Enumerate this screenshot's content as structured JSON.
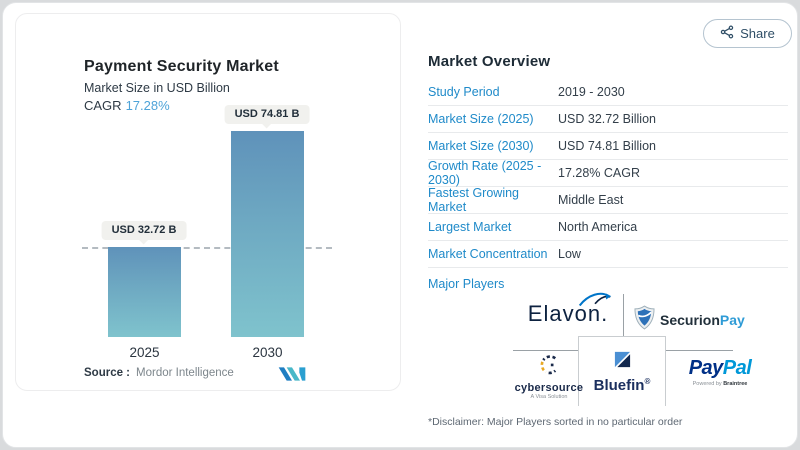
{
  "share": {
    "label": "Share"
  },
  "chart_panel": {
    "title": "Payment Security Market",
    "subtitle": "Market Size in USD Billion",
    "cagr_label": "CAGR",
    "cagr_value": "17.28%",
    "source_label": "Source :",
    "source_value": "Mordor Intelligence"
  },
  "chart_data": {
    "type": "bar",
    "title": "Payment Security Market",
    "subtitle": "Market Size in USD Billion",
    "categories": [
      "2025",
      "2030"
    ],
    "values": [
      32.72,
      74.81
    ],
    "bar_labels": [
      "USD 32.72 B",
      "USD 74.81 B"
    ],
    "cagr": "17.28%",
    "unit": "USD Billion",
    "reference_line_value": 32.72,
    "ylim": [
      0,
      80
    ],
    "grid": false,
    "legend": "none",
    "bar_color_top": "#5f92ba",
    "bar_color_bottom": "#7fc3cd"
  },
  "overview": {
    "title": "Market Overview",
    "rows": [
      {
        "label": "Study Period",
        "value": "2019 - 2030"
      },
      {
        "label": "Market Size (2025)",
        "value": "USD 32.72 Billion"
      },
      {
        "label": "Market Size (2030)",
        "value": "USD 74.81 Billion"
      },
      {
        "label": "Growth Rate (2025 - 2030)",
        "value": "17.28% CAGR"
      },
      {
        "label": "Fastest Growing Market",
        "value": "Middle East"
      },
      {
        "label": "Largest Market",
        "value": "North America"
      },
      {
        "label": "Market Concentration",
        "value": "Low"
      }
    ],
    "major_players_label": "Major Players",
    "disclaimer": "*Disclaimer: Major Players sorted in no particular order"
  },
  "players": {
    "elavon": {
      "name": "Elavon."
    },
    "securionpay": {
      "name_dark": "Securion",
      "name_blue": "Pay"
    },
    "cybersource": {
      "name": "cybersource",
      "tagline": "A Visa Solution"
    },
    "bluefin": {
      "name": "Bluefin",
      "reg": "®"
    },
    "paypal": {
      "name_dark": "Pay",
      "name_light": "Pal",
      "tagline_pre": "Powered by ",
      "tagline_brand": "Braintree"
    }
  },
  "colors": {
    "label_blue": "#1f8ac9",
    "cagr_blue": "#4ea3d8",
    "dark_text": "#2e3a45",
    "bar_top": "#5f92ba",
    "bar_bottom": "#7fc3cd"
  }
}
